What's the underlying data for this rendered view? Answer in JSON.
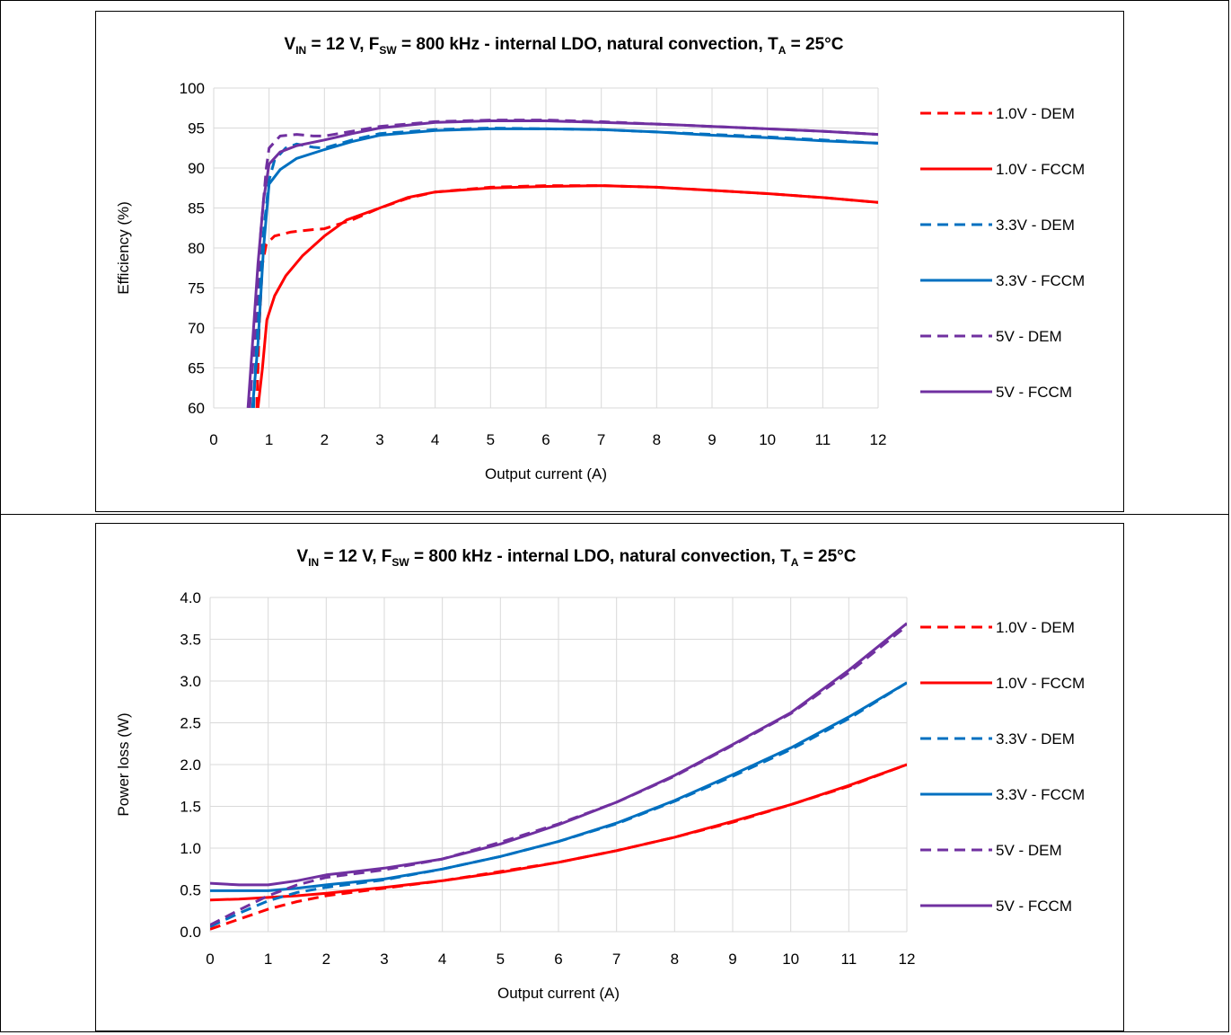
{
  "chart_data": [
    {
      "type": "line",
      "title": {
        "prefix": "V",
        "vin_sub": "IN",
        "mid1": " = 12 V, F",
        "fsw_sub": "SW",
        "mid2": " = 800 kHz - internal LDO, natural convection, T",
        "ta_sub": "A",
        "suffix": " = 25°C"
      },
      "xlabel": "Output current (A)",
      "ylabel": "Efficiency (%)",
      "xlim": [
        0,
        12
      ],
      "ylim": [
        60,
        100
      ],
      "xticks": [
        "0",
        "1",
        "2",
        "3",
        "4",
        "5",
        "6",
        "7",
        "8",
        "9",
        "10",
        "11",
        "12"
      ],
      "yticks": [
        "60",
        "65",
        "70",
        "75",
        "80",
        "85",
        "90",
        "95",
        "100"
      ],
      "grid": true,
      "legend_position": "right",
      "series": [
        {
          "name": "1.0V - DEM",
          "color": "#ff0000",
          "dash": true,
          "points": [
            [
              0.78,
              60
            ],
            [
              0.82,
              70
            ],
            [
              0.88,
              78
            ],
            [
              0.95,
              80.5
            ],
            [
              1.1,
              81.5
            ],
            [
              1.4,
              82
            ],
            [
              1.8,
              82.3
            ],
            [
              2,
              82.4
            ],
            [
              2.5,
              83.5
            ],
            [
              3,
              85
            ],
            [
              3.5,
              86.2
            ],
            [
              4,
              87
            ],
            [
              5,
              87.6
            ],
            [
              6,
              87.8
            ],
            [
              7,
              87.8
            ],
            [
              8,
              87.6
            ],
            [
              9,
              87.2
            ],
            [
              10,
              86.8
            ],
            [
              11,
              86.3
            ],
            [
              12,
              85.7
            ]
          ]
        },
        {
          "name": "1.0V - FCCM",
          "color": "#ff0000",
          "dash": false,
          "points": [
            [
              0.8,
              60
            ],
            [
              0.88,
              65
            ],
            [
              0.96,
              71
            ],
            [
              1.1,
              74
            ],
            [
              1.3,
              76.5
            ],
            [
              1.6,
              79
            ],
            [
              2,
              81.5
            ],
            [
              2.4,
              83.5
            ],
            [
              3,
              85
            ],
            [
              3.5,
              86.3
            ],
            [
              4,
              87
            ],
            [
              5,
              87.5
            ],
            [
              6,
              87.7
            ],
            [
              7,
              87.8
            ],
            [
              8,
              87.6
            ],
            [
              9,
              87.2
            ],
            [
              10,
              86.8
            ],
            [
              11,
              86.3
            ],
            [
              12,
              85.7
            ]
          ]
        },
        {
          "name": "3.3V - DEM",
          "color": "#0070c0",
          "dash": true,
          "points": [
            [
              0.72,
              60
            ],
            [
              0.8,
              72
            ],
            [
              0.9,
              82
            ],
            [
              1,
              88.5
            ],
            [
              1.1,
              91
            ],
            [
              1.3,
              92.5
            ],
            [
              1.5,
              93
            ],
            [
              1.8,
              92.6
            ],
            [
              2,
              92.5
            ],
            [
              2.5,
              93.5
            ],
            [
              3,
              94.3
            ],
            [
              4,
              94.8
            ],
            [
              5,
              95
            ],
            [
              6,
              94.9
            ],
            [
              7,
              94.8
            ],
            [
              8,
              94.5
            ],
            [
              9,
              94.2
            ],
            [
              10,
              93.9
            ],
            [
              11,
              93.5
            ],
            [
              12,
              93.1
            ]
          ]
        },
        {
          "name": "3.3V - FCCM",
          "color": "#0070c0",
          "dash": false,
          "points": [
            [
              0.7,
              60
            ],
            [
              0.8,
              68
            ],
            [
              0.9,
              80
            ],
            [
              1,
              88
            ],
            [
              1.2,
              89.8
            ],
            [
              1.5,
              91.2
            ],
            [
              2,
              92.3
            ],
            [
              2.5,
              93.3
            ],
            [
              3,
              94.1
            ],
            [
              4,
              94.7
            ],
            [
              5,
              94.9
            ],
            [
              6,
              94.9
            ],
            [
              7,
              94.8
            ],
            [
              8,
              94.5
            ],
            [
              9,
              94.1
            ],
            [
              10,
              93.8
            ],
            [
              11,
              93.4
            ],
            [
              12,
              93.1
            ]
          ]
        },
        {
          "name": "5V - DEM",
          "color": "#7030a0",
          "dash": true,
          "points": [
            [
              0.65,
              60
            ],
            [
              0.75,
              70
            ],
            [
              0.85,
              82
            ],
            [
              0.95,
              90
            ],
            [
              1,
              92.5
            ],
            [
              1.2,
              94
            ],
            [
              1.5,
              94.2
            ],
            [
              1.8,
              94
            ],
            [
              2,
              94
            ],
            [
              2.5,
              94.6
            ],
            [
              3,
              95.2
            ],
            [
              4,
              95.8
            ],
            [
              5,
              96
            ],
            [
              6,
              96
            ],
            [
              7,
              95.8
            ],
            [
              8,
              95.5
            ],
            [
              9,
              95.2
            ],
            [
              10,
              94.9
            ],
            [
              11,
              94.6
            ],
            [
              12,
              94.2
            ]
          ]
        },
        {
          "name": "5V - FCCM",
          "color": "#7030a0",
          "dash": false,
          "points": [
            [
              0.62,
              60
            ],
            [
              0.7,
              68
            ],
            [
              0.8,
              78
            ],
            [
              0.9,
              86
            ],
            [
              1,
              90.5
            ],
            [
              1.2,
              92
            ],
            [
              1.5,
              92.8
            ],
            [
              2,
              93.5
            ],
            [
              2.5,
              94.3
            ],
            [
              3,
              95
            ],
            [
              4,
              95.7
            ],
            [
              5,
              95.9
            ],
            [
              6,
              95.9
            ],
            [
              7,
              95.7
            ],
            [
              8,
              95.5
            ],
            [
              9,
              95.2
            ],
            [
              10,
              94.9
            ],
            [
              11,
              94.6
            ],
            [
              12,
              94.2
            ]
          ]
        }
      ]
    },
    {
      "type": "line",
      "title": {
        "prefix": "V",
        "vin_sub": "IN",
        "mid1": " = 12 V, F",
        "fsw_sub": "SW",
        "mid2": " = 800 kHz - internal LDO, natural convection, T",
        "ta_sub": "A",
        "suffix": " = 25°C"
      },
      "xlabel": "Output current (A)",
      "ylabel": "Power loss (W)",
      "xlim": [
        0,
        12
      ],
      "ylim": [
        0,
        4
      ],
      "xticks": [
        "0",
        "1",
        "2",
        "3",
        "4",
        "5",
        "6",
        "7",
        "8",
        "9",
        "10",
        "11",
        "12"
      ],
      "yticks": [
        "0.0",
        "0.5",
        "1.0",
        "1.5",
        "2.0",
        "2.5",
        "3.0",
        "3.5",
        "4.0"
      ],
      "grid": true,
      "legend_position": "right",
      "series": [
        {
          "name": "1.0V - DEM",
          "color": "#ff0000",
          "dash": true,
          "points": [
            [
              0,
              0.03
            ],
            [
              0.5,
              0.15
            ],
            [
              1,
              0.27
            ],
            [
              1.5,
              0.36
            ],
            [
              2,
              0.43
            ],
            [
              3,
              0.52
            ],
            [
              4,
              0.61
            ],
            [
              5,
              0.72
            ],
            [
              6,
              0.83
            ],
            [
              7,
              0.97
            ],
            [
              8,
              1.13
            ],
            [
              9,
              1.31
            ],
            [
              10,
              1.52
            ],
            [
              11,
              1.74
            ],
            [
              12,
              2.0
            ]
          ]
        },
        {
          "name": "1.0V - FCCM",
          "color": "#ff0000",
          "dash": false,
          "points": [
            [
              0,
              0.38
            ],
            [
              0.5,
              0.39
            ],
            [
              1,
              0.41
            ],
            [
              1.5,
              0.43
            ],
            [
              2,
              0.46
            ],
            [
              3,
              0.53
            ],
            [
              4,
              0.61
            ],
            [
              5,
              0.71
            ],
            [
              6,
              0.83
            ],
            [
              7,
              0.97
            ],
            [
              8,
              1.13
            ],
            [
              9,
              1.32
            ],
            [
              10,
              1.52
            ],
            [
              11,
              1.75
            ],
            [
              12,
              2.0
            ]
          ]
        },
        {
          "name": "3.3V - DEM",
          "color": "#0070c0",
          "dash": true,
          "points": [
            [
              0,
              0.06
            ],
            [
              0.5,
              0.22
            ],
            [
              1,
              0.37
            ],
            [
              1.5,
              0.47
            ],
            [
              2,
              0.53
            ],
            [
              3,
              0.62
            ],
            [
              4,
              0.75
            ],
            [
              5,
              0.9
            ],
            [
              6,
              1.08
            ],
            [
              7,
              1.29
            ],
            [
              8,
              1.56
            ],
            [
              9,
              1.86
            ],
            [
              10,
              2.18
            ],
            [
              11,
              2.55
            ],
            [
              12,
              2.98
            ]
          ]
        },
        {
          "name": "3.3V - FCCM",
          "color": "#0070c0",
          "dash": false,
          "points": [
            [
              0,
              0.49
            ],
            [
              0.5,
              0.49
            ],
            [
              1,
              0.49
            ],
            [
              1.5,
              0.52
            ],
            [
              2,
              0.56
            ],
            [
              3,
              0.63
            ],
            [
              4,
              0.75
            ],
            [
              5,
              0.9
            ],
            [
              6,
              1.08
            ],
            [
              7,
              1.3
            ],
            [
              8,
              1.57
            ],
            [
              9,
              1.88
            ],
            [
              10,
              2.2
            ],
            [
              11,
              2.57
            ],
            [
              12,
              2.98
            ]
          ]
        },
        {
          "name": "5V - DEM",
          "color": "#7030a0",
          "dash": true,
          "points": [
            [
              0,
              0.08
            ],
            [
              0.5,
              0.26
            ],
            [
              1,
              0.43
            ],
            [
              1.5,
              0.56
            ],
            [
              2,
              0.65
            ],
            [
              3,
              0.74
            ],
            [
              4,
              0.87
            ],
            [
              5,
              1.07
            ],
            [
              6,
              1.29
            ],
            [
              7,
              1.55
            ],
            [
              8,
              1.86
            ],
            [
              9,
              2.23
            ],
            [
              10,
              2.61
            ],
            [
              11,
              3.1
            ],
            [
              12,
              3.66
            ]
          ]
        },
        {
          "name": "5V - FCCM",
          "color": "#7030a0",
          "dash": false,
          "points": [
            [
              0,
              0.58
            ],
            [
              0.5,
              0.56
            ],
            [
              1,
              0.56
            ],
            [
              1.5,
              0.61
            ],
            [
              2,
              0.68
            ],
            [
              3,
              0.76
            ],
            [
              4,
              0.87
            ],
            [
              5,
              1.05
            ],
            [
              6,
              1.28
            ],
            [
              7,
              1.55
            ],
            [
              8,
              1.87
            ],
            [
              9,
              2.24
            ],
            [
              10,
              2.62
            ],
            [
              11,
              3.13
            ],
            [
              12,
              3.69
            ]
          ]
        }
      ]
    }
  ]
}
